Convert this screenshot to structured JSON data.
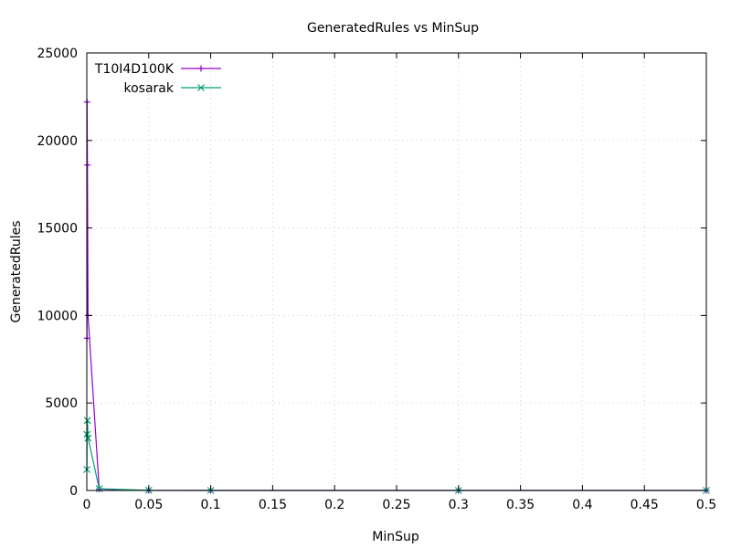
{
  "chart_data": {
    "type": "line",
    "title": "GeneratedRules vs MinSup",
    "xlabel": "MinSup",
    "ylabel": "GeneratedRules",
    "xlim": [
      0,
      0.5
    ],
    "ylim": [
      0,
      25000
    ],
    "xticks": [
      0,
      0.05,
      0.1,
      0.15,
      0.2,
      0.25,
      0.3,
      0.35,
      0.4,
      0.45,
      0.5
    ],
    "xtick_labels": [
      "0",
      "0.05",
      "0.1",
      "0.15",
      "0.2",
      "0.25",
      "0.3",
      "0.35",
      "0.4",
      "0.45",
      "0.5"
    ],
    "yticks": [
      0,
      5000,
      10000,
      15000,
      20000,
      25000
    ],
    "ytick_labels": [
      "0",
      "5000",
      "10000",
      "15000",
      "20000",
      "25000"
    ],
    "grid": true,
    "legend_position": "top-left",
    "series": [
      {
        "name": "T10I4D100K",
        "color": "#9400d3",
        "marker": "plus",
        "x": [
          0.0001,
          0.0002,
          0.0005,
          0.001,
          0.01,
          0.05,
          0.1,
          0.3,
          0.5
        ],
        "y": [
          8700,
          22200,
          18600,
          10000,
          80,
          0,
          0,
          0,
          0
        ]
      },
      {
        "name": "kosarak",
        "color": "#009e73",
        "marker": "cross",
        "x": [
          0.0001,
          0.0002,
          0.0005,
          0.001,
          0.01,
          0.05,
          0.1,
          0.3,
          0.5
        ],
        "y": [
          1200,
          3200,
          4000,
          3000,
          100,
          10,
          0,
          0,
          0
        ]
      }
    ]
  }
}
